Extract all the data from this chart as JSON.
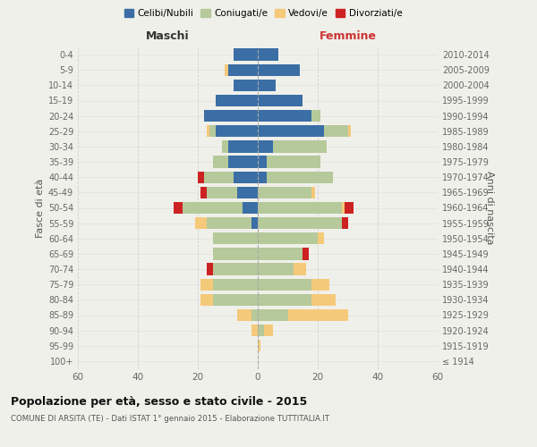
{
  "age_groups": [
    "100+",
    "95-99",
    "90-94",
    "85-89",
    "80-84",
    "75-79",
    "70-74",
    "65-69",
    "60-64",
    "55-59",
    "50-54",
    "45-49",
    "40-44",
    "35-39",
    "30-34",
    "25-29",
    "20-24",
    "15-19",
    "10-14",
    "5-9",
    "0-4"
  ],
  "birth_years": [
    "≤ 1914",
    "1915-1919",
    "1920-1924",
    "1925-1929",
    "1930-1934",
    "1935-1939",
    "1940-1944",
    "1945-1949",
    "1950-1954",
    "1955-1959",
    "1960-1964",
    "1965-1969",
    "1970-1974",
    "1975-1979",
    "1980-1984",
    "1985-1989",
    "1990-1994",
    "1995-1999",
    "2000-2004",
    "2005-2009",
    "2010-2014"
  ],
  "maschi": {
    "celibi": [
      0,
      0,
      0,
      0,
      0,
      0,
      0,
      0,
      0,
      2,
      5,
      7,
      8,
      10,
      10,
      14,
      18,
      14,
      8,
      10,
      8
    ],
    "coniugati": [
      0,
      0,
      0,
      2,
      15,
      15,
      15,
      15,
      15,
      15,
      20,
      10,
      10,
      5,
      2,
      2,
      0,
      0,
      0,
      0,
      0
    ],
    "vedovi": [
      0,
      0,
      2,
      5,
      4,
      4,
      0,
      0,
      0,
      4,
      0,
      0,
      0,
      0,
      0,
      1,
      0,
      0,
      0,
      1,
      0
    ],
    "divorziati": [
      0,
      0,
      0,
      0,
      0,
      0,
      2,
      0,
      0,
      0,
      3,
      2,
      2,
      0,
      0,
      0,
      0,
      0,
      0,
      0,
      0
    ]
  },
  "femmine": {
    "celibi": [
      0,
      0,
      0,
      0,
      0,
      0,
      0,
      0,
      0,
      0,
      0,
      0,
      3,
      3,
      5,
      22,
      18,
      15,
      6,
      14,
      7
    ],
    "coniugati": [
      0,
      0,
      2,
      10,
      18,
      18,
      12,
      15,
      20,
      28,
      28,
      18,
      22,
      18,
      18,
      8,
      3,
      0,
      0,
      0,
      0
    ],
    "vedovi": [
      0,
      1,
      3,
      20,
      8,
      6,
      4,
      0,
      2,
      0,
      1,
      1,
      0,
      0,
      0,
      1,
      0,
      0,
      0,
      0,
      0
    ],
    "divorziati": [
      0,
      0,
      0,
      0,
      0,
      0,
      0,
      2,
      0,
      2,
      3,
      0,
      0,
      0,
      0,
      0,
      0,
      0,
      0,
      0,
      0
    ]
  },
  "colors": {
    "celibi": "#3a6ea5",
    "coniugati": "#b5c99a",
    "vedovi": "#f5c97a",
    "divorziati": "#cc2222"
  },
  "xlim": 60,
  "title": "Popolazione per età, sesso e stato civile - 2015",
  "subtitle": "COMUNE DI ARSITA (TE) - Dati ISTAT 1° gennaio 2015 - Elaborazione TUTTITALIA.IT",
  "ylabel_left": "Fasce di età",
  "ylabel_right": "Anni di nascita",
  "xlabel_left": "Maschi",
  "xlabel_right": "Femmine",
  "bg_color": "#f0f0eb",
  "grid_color": "#cccccc",
  "bar_height": 0.78
}
